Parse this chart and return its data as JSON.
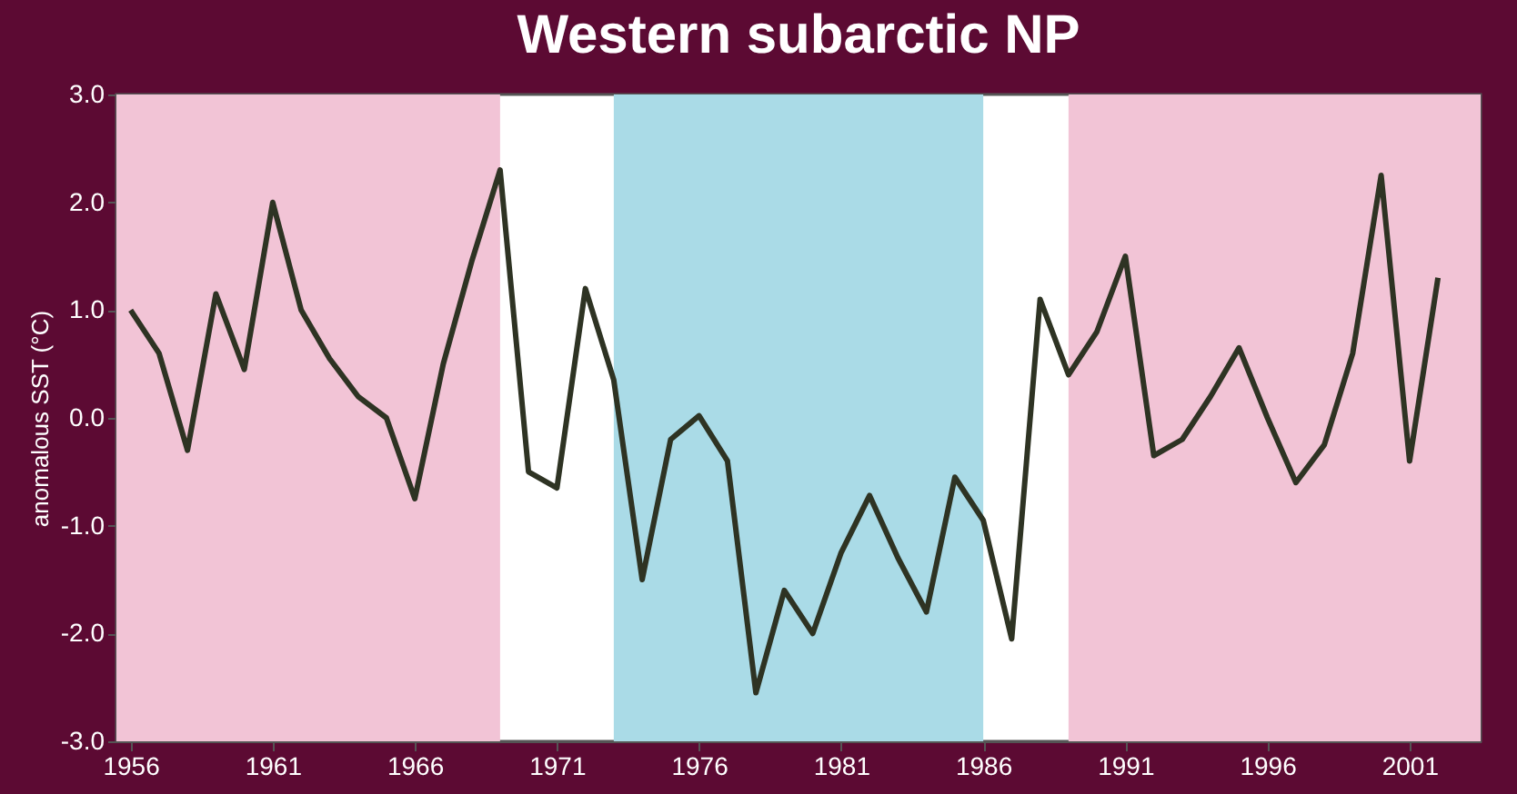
{
  "chart_data": {
    "type": "line",
    "title": "Western subarctic NP",
    "ylabel": "anomalous SST (°C)",
    "x": [
      1956,
      1957,
      1958,
      1959,
      1960,
      1961,
      1962,
      1963,
      1964,
      1965,
      1966,
      1967,
      1968,
      1969,
      1970,
      1971,
      1972,
      1973,
      1974,
      1975,
      1976,
      1977,
      1978,
      1979,
      1980,
      1981,
      1982,
      1983,
      1984,
      1985,
      1986,
      1987,
      1988,
      1989,
      1990,
      1991,
      1992,
      1993,
      1994,
      1995,
      1996,
      1997,
      1998,
      1999,
      2000,
      2001,
      2002
    ],
    "series": [
      {
        "color": "#2e3323",
        "values": [
          1.0,
          0.6,
          -0.3,
          1.15,
          0.45,
          2.0,
          1.0,
          0.55,
          0.2,
          0.0,
          -0.75,
          0.5,
          1.45,
          2.3,
          -0.5,
          -0.65,
          1.2,
          0.35,
          -1.5,
          -0.2,
          0.02,
          -0.4,
          -2.55,
          -1.6,
          -2.0,
          -1.25,
          -0.72,
          -1.3,
          -1.8,
          -0.55,
          -0.95,
          -2.05,
          1.1,
          0.4,
          0.8,
          1.5,
          -0.35,
          -0.2,
          0.2,
          0.65,
          0.0,
          -0.6,
          -0.25,
          0.6,
          2.25,
          -0.4,
          1.3
        ]
      }
    ],
    "xlim": [
      1955.5,
      2003.5
    ],
    "xticks": [
      1956,
      1961,
      1966,
      1971,
      1976,
      1981,
      1986,
      1991,
      1996,
      2001
    ],
    "ylim": [
      -3.0,
      3.0
    ],
    "yticks": [
      {
        "value": -3,
        "label": "-3.0"
      },
      {
        "value": -2,
        "label": "-2.0"
      },
      {
        "value": -1,
        "label": "-1.0"
      },
      {
        "value": 0,
        "label": "0.0"
      },
      {
        "value": 1,
        "label": "1.0"
      },
      {
        "value": 2,
        "label": "2.0"
      },
      {
        "value": 3,
        "label": "3.0"
      }
    ],
    "bands": [
      {
        "axis": "x",
        "from": 1955.5,
        "to": 1969,
        "color": "#f2c4d6"
      },
      {
        "axis": "x",
        "from": 1973,
        "to": 1986,
        "color": "#aadbe7"
      },
      {
        "axis": "x",
        "from": 1989,
        "to": 2003.5,
        "color": "#f2c4d6"
      }
    ],
    "grid": false,
    "marker": "none",
    "line_style": "solid"
  }
}
